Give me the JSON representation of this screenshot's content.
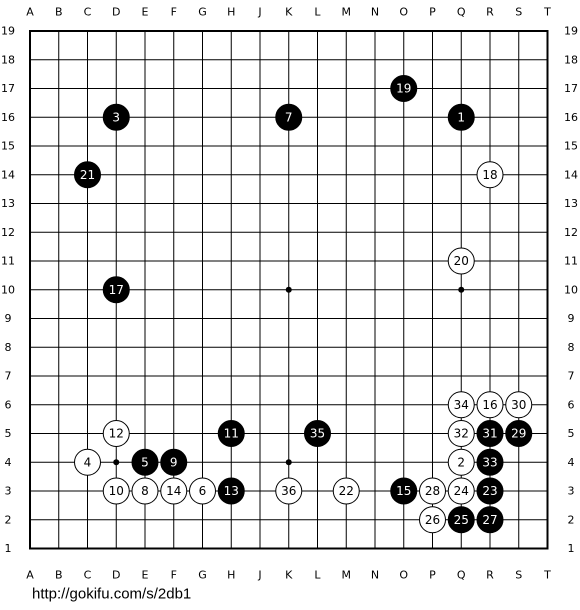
{
  "board": {
    "columns": [
      "A",
      "B",
      "C",
      "D",
      "E",
      "F",
      "G",
      "H",
      "J",
      "K",
      "L",
      "M",
      "N",
      "O",
      "P",
      "Q",
      "R",
      "S",
      "T"
    ],
    "rows": [
      19,
      18,
      17,
      16,
      15,
      14,
      13,
      12,
      11,
      10,
      9,
      8,
      7,
      6,
      5,
      4,
      3,
      2,
      1
    ],
    "star_points": [
      [
        "D",
        4
      ],
      [
        "K",
        4
      ],
      [
        "Q",
        4
      ],
      [
        "D",
        10
      ],
      [
        "K",
        10
      ],
      [
        "Q",
        10
      ],
      [
        "D",
        16
      ],
      [
        "K",
        16
      ],
      [
        "Q",
        16
      ]
    ],
    "moves": [
      {
        "number": 1,
        "color": "black",
        "col": "Q",
        "row": 16
      },
      {
        "number": 2,
        "color": "white",
        "col": "Q",
        "row": 4
      },
      {
        "number": 3,
        "color": "black",
        "col": "D",
        "row": 16
      },
      {
        "number": 4,
        "color": "white",
        "col": "C",
        "row": 4
      },
      {
        "number": 5,
        "color": "black",
        "col": "E",
        "row": 4
      },
      {
        "number": 6,
        "color": "white",
        "col": "G",
        "row": 3
      },
      {
        "number": 7,
        "color": "black",
        "col": "K",
        "row": 16
      },
      {
        "number": 8,
        "color": "white",
        "col": "E",
        "row": 3
      },
      {
        "number": 9,
        "color": "black",
        "col": "F",
        "row": 4
      },
      {
        "number": 10,
        "color": "white",
        "col": "D",
        "row": 3
      },
      {
        "number": 11,
        "color": "black",
        "col": "H",
        "row": 5
      },
      {
        "number": 12,
        "color": "white",
        "col": "D",
        "row": 5
      },
      {
        "number": 13,
        "color": "black",
        "col": "H",
        "row": 3
      },
      {
        "number": 14,
        "color": "white",
        "col": "F",
        "row": 3
      },
      {
        "number": 15,
        "color": "black",
        "col": "O",
        "row": 3
      },
      {
        "number": 16,
        "color": "white",
        "col": "R",
        "row": 6
      },
      {
        "number": 17,
        "color": "black",
        "col": "D",
        "row": 10
      },
      {
        "number": 18,
        "color": "white",
        "col": "R",
        "row": 14
      },
      {
        "number": 19,
        "color": "black",
        "col": "O",
        "row": 17
      },
      {
        "number": 20,
        "color": "white",
        "col": "Q",
        "row": 11
      },
      {
        "number": 21,
        "color": "black",
        "col": "C",
        "row": 14
      },
      {
        "number": 22,
        "color": "white",
        "col": "M",
        "row": 3
      },
      {
        "number": 23,
        "color": "black",
        "col": "R",
        "row": 3
      },
      {
        "number": 24,
        "color": "white",
        "col": "Q",
        "row": 3
      },
      {
        "number": 25,
        "color": "black",
        "col": "Q",
        "row": 2
      },
      {
        "number": 26,
        "color": "white",
        "col": "P",
        "row": 2
      },
      {
        "number": 27,
        "color": "black",
        "col": "R",
        "row": 2
      },
      {
        "number": 28,
        "color": "white",
        "col": "P",
        "row": 3
      },
      {
        "number": 29,
        "color": "black",
        "col": "S",
        "row": 5
      },
      {
        "number": 30,
        "color": "white",
        "col": "S",
        "row": 6
      },
      {
        "number": 31,
        "color": "black",
        "col": "R",
        "row": 5
      },
      {
        "number": 32,
        "color": "white",
        "col": "Q",
        "row": 5
      },
      {
        "number": 33,
        "color": "black",
        "col": "R",
        "row": 4
      },
      {
        "number": 34,
        "color": "white",
        "col": "Q",
        "row": 6
      },
      {
        "number": 35,
        "color": "black",
        "col": "L",
        "row": 5
      },
      {
        "number": 36,
        "color": "white",
        "col": "K",
        "row": 3
      }
    ]
  },
  "footer": {
    "url": "http://gokifu.com/s/2db1"
  }
}
